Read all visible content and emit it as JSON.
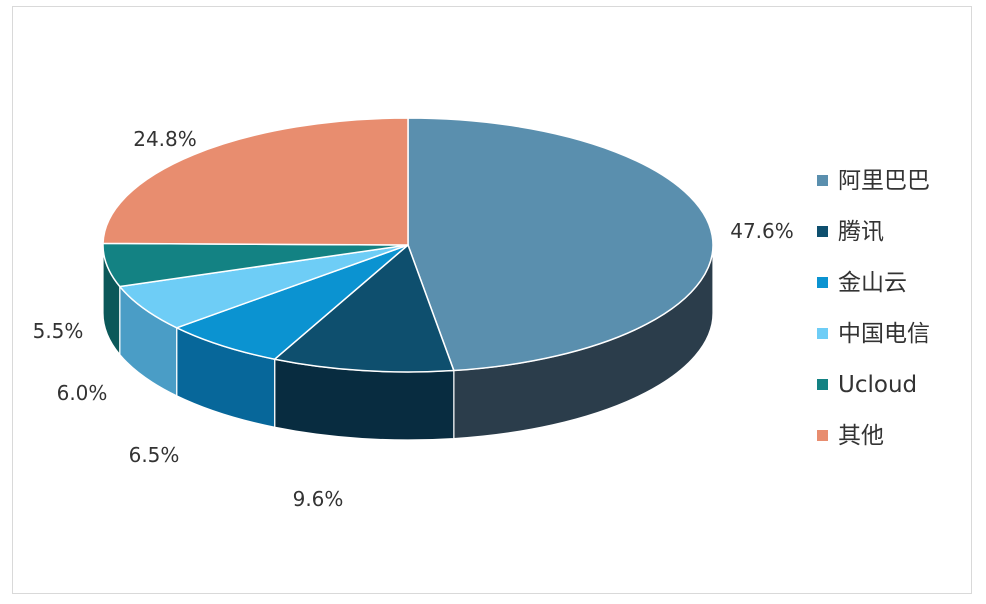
{
  "chart_data": {
    "type": "pie",
    "style": "3d",
    "legend_position": "right",
    "slices": [
      {
        "name": "阿里巴巴",
        "value": 47.6,
        "label": "47.6%",
        "color": "#5a8fae",
        "side_color": "#2b3d4b"
      },
      {
        "name": "腾讯",
        "value": 9.6,
        "label": "9.6%",
        "color": "#0e4f6e",
        "side_color": "#082c40"
      },
      {
        "name": "金山云",
        "value": 6.5,
        "label": "6.5%",
        "color": "#0b93d1",
        "side_color": "#07679a"
      },
      {
        "name": "中国电信",
        "value": 6.0,
        "label": "6.0%",
        "color": "#6ecdf6",
        "side_color": "#4a9dc6"
      },
      {
        "name": "Ucloud",
        "value": 5.5,
        "label": "5.5%",
        "color": "#138283",
        "side_color": "#0b5859"
      },
      {
        "name": "其他",
        "value": 24.8,
        "label": "24.8%",
        "color": "#e88d6f",
        "side_color": "#a85f48"
      }
    ]
  }
}
